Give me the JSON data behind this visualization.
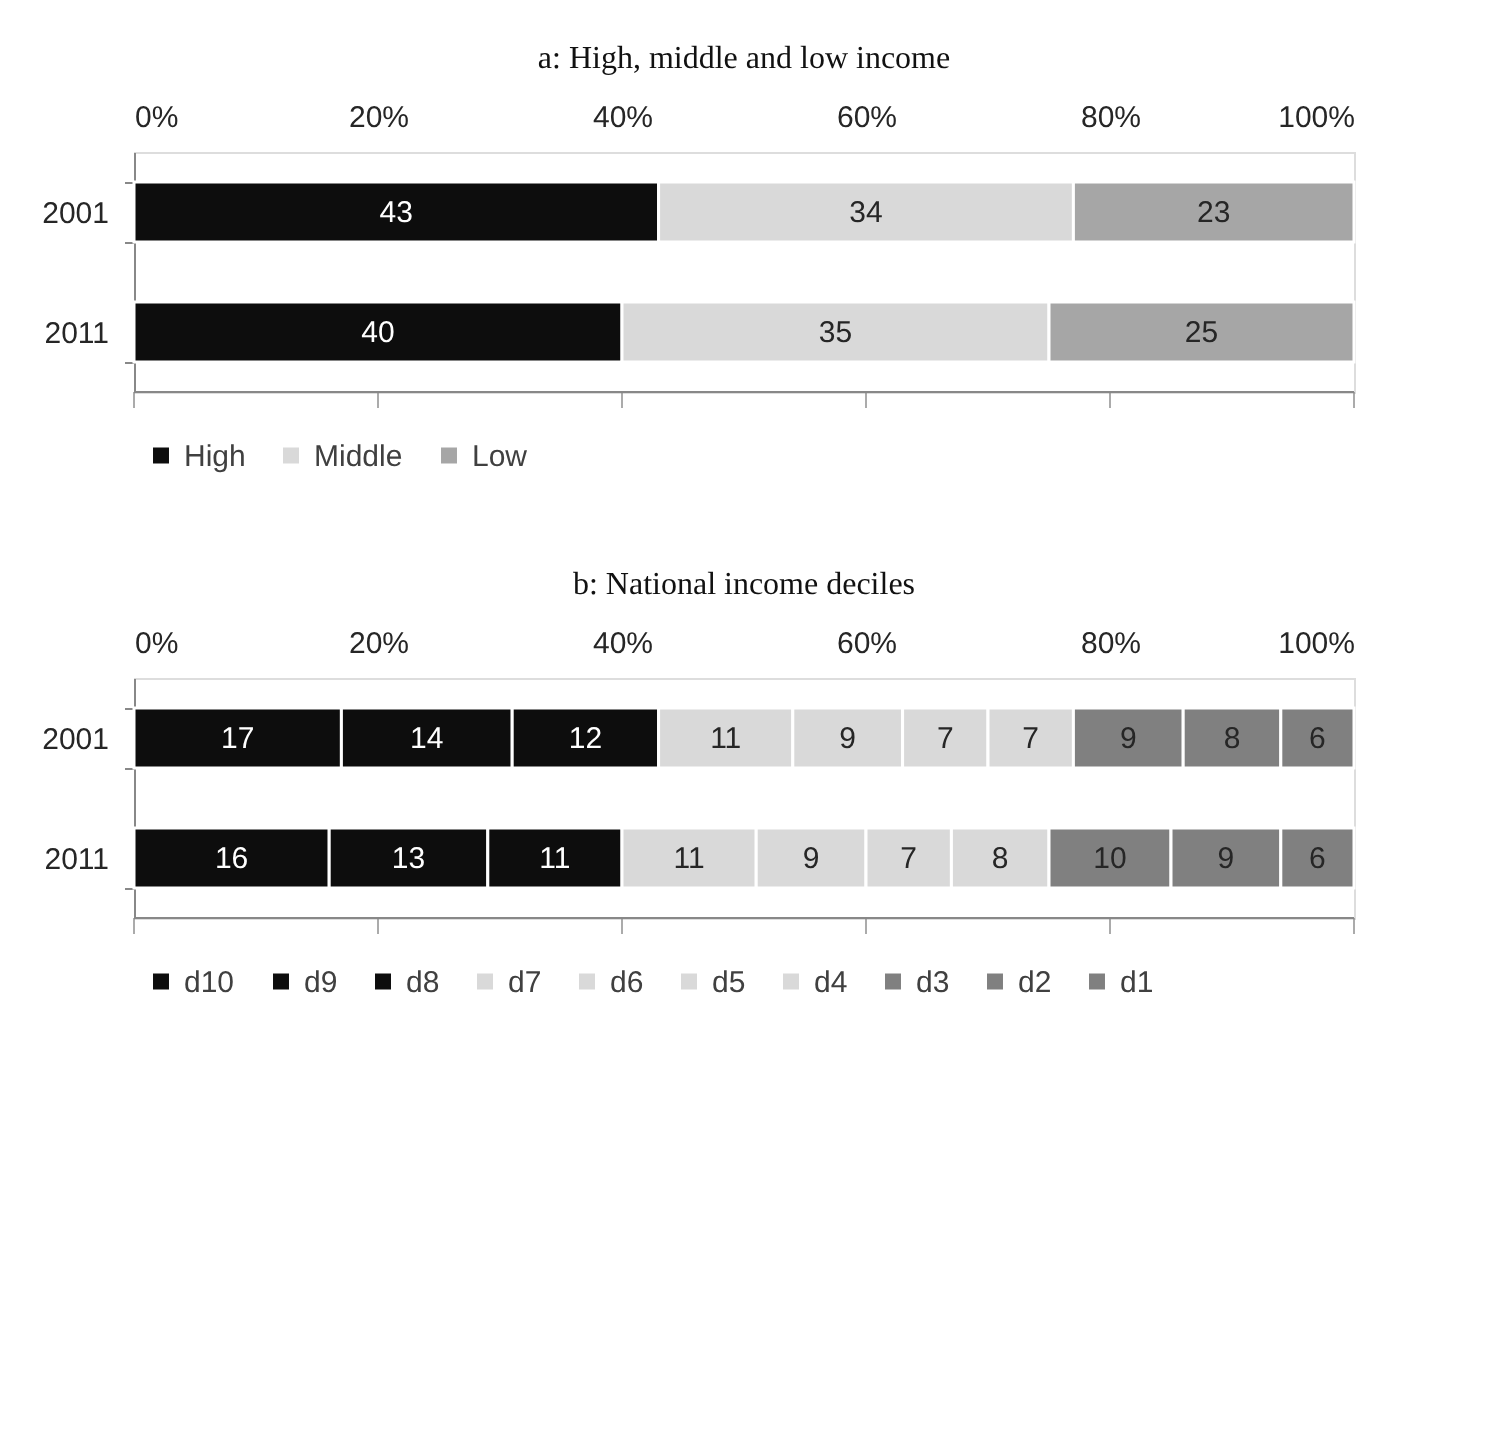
{
  "chart_data": [
    {
      "type": "bar",
      "title": "a: High, middle and low income",
      "orientation": "horizontal",
      "stacked": true,
      "categories": [
        "2001",
        "2011"
      ],
      "series": [
        {
          "name": "High",
          "color": "#0d0d0d",
          "values": [
            43,
            40
          ]
        },
        {
          "name": "Middle",
          "color": "#d9d9d9",
          "values": [
            34,
            35
          ]
        },
        {
          "name": "Low",
          "color": "#a6a6a6",
          "values": [
            23,
            25
          ]
        }
      ],
      "xlim": [
        0,
        100
      ],
      "xticks": [
        {
          "value": 0,
          "label": "0%"
        },
        {
          "value": 20,
          "label": "20%"
        },
        {
          "value": 40,
          "label": "40%"
        },
        {
          "value": 60,
          "label": "60%"
        },
        {
          "value": 80,
          "label": "80%"
        },
        {
          "value": 100,
          "label": "100%"
        }
      ],
      "data_labels": true,
      "legend": "bottom",
      "grid": false
    },
    {
      "type": "bar",
      "title": "b: National income deciles",
      "orientation": "horizontal",
      "stacked": true,
      "categories": [
        "2001",
        "2011"
      ],
      "series": [
        {
          "name": "d10",
          "color": "#0d0d0d",
          "values": [
            17,
            16
          ]
        },
        {
          "name": "d9",
          "color": "#0d0d0d",
          "values": [
            14,
            13
          ]
        },
        {
          "name": "d8",
          "color": "#0d0d0d",
          "values": [
            12,
            11
          ]
        },
        {
          "name": "d7",
          "color": "#d9d9d9",
          "values": [
            11,
            11
          ]
        },
        {
          "name": "d6",
          "color": "#d9d9d9",
          "values": [
            9,
            9
          ]
        },
        {
          "name": "d5",
          "color": "#d9d9d9",
          "values": [
            7,
            7
          ]
        },
        {
          "name": "d4",
          "color": "#d9d9d9",
          "values": [
            7,
            8
          ]
        },
        {
          "name": "d3",
          "color": "#808080",
          "values": [
            9,
            10
          ]
        },
        {
          "name": "d2",
          "color": "#808080",
          "values": [
            8,
            9
          ]
        },
        {
          "name": "d1",
          "color": "#808080",
          "values": [
            6,
            6
          ]
        }
      ],
      "xlim": [
        0,
        100
      ],
      "xticks": [
        {
          "value": 0,
          "label": "0%"
        },
        {
          "value": 20,
          "label": "20%"
        },
        {
          "value": 40,
          "label": "40%"
        },
        {
          "value": 60,
          "label": "60%"
        },
        {
          "value": 80,
          "label": "80%"
        },
        {
          "value": 100,
          "label": "100%"
        }
      ],
      "data_labels": true,
      "legend": "bottom",
      "grid": false
    }
  ]
}
